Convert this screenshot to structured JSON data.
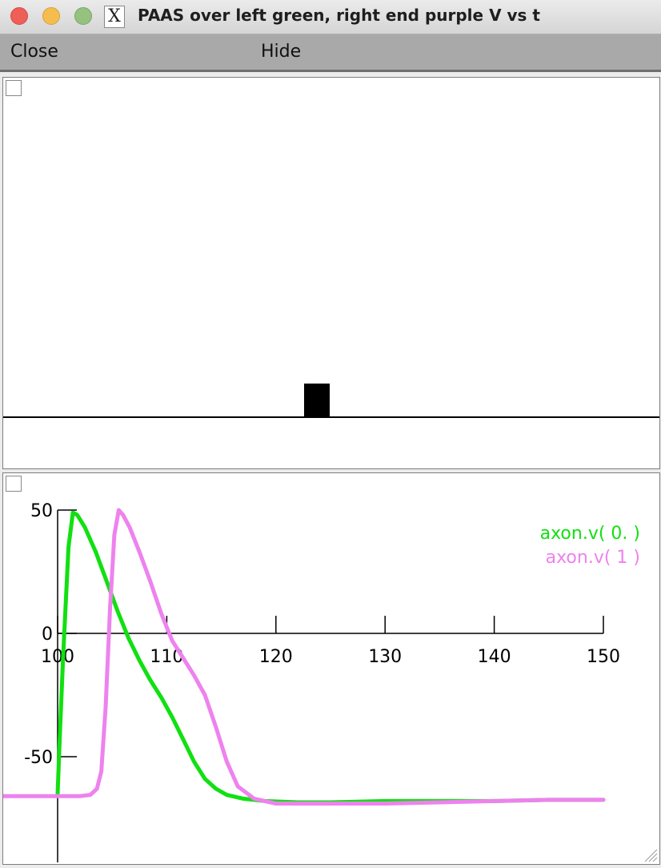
{
  "window": {
    "title": "PAAS over left green, right end purple V vs t"
  },
  "menu": {
    "close_label": "Close",
    "hide_label": "Hide"
  },
  "chart_data": {
    "type": "line",
    "xlim": [
      100,
      150
    ],
    "ylim": [
      -88,
      52
    ],
    "x_ticks": [
      100,
      110,
      120,
      130,
      140,
      150
    ],
    "x_tick_labels": [
      "100",
      "110",
      "120",
      "130",
      "140",
      "150"
    ],
    "y_ticks": [
      50,
      0,
      -50
    ],
    "y_tick_labels": [
      "50",
      "0",
      "-50"
    ],
    "legend_position": "top-right",
    "series": [
      {
        "name": "axon.v( 0. )",
        "color": "#11e011",
        "x": [
          100,
          100.2,
          100.5,
          101,
          101.4,
          101.8,
          102.5,
          103.5,
          104.5,
          105.5,
          106.5,
          107.5,
          108.5,
          109.5,
          110.5,
          111.5,
          112.5,
          113.5,
          114.5,
          115.5,
          117,
          119,
          122,
          125,
          130,
          135,
          140,
          145,
          150
        ],
        "y": [
          -65,
          -42,
          -10,
          35,
          49,
          48,
          43,
          33,
          21,
          9,
          -2,
          -11,
          -19,
          -26,
          -34,
          -43,
          -52,
          -59,
          -63,
          -65.5,
          -67,
          -68,
          -68.5,
          -68.5,
          -68,
          -68,
          -68,
          -67.5,
          -67.5
        ]
      },
      {
        "name": "axon.v( 1 )",
        "color": "#ee82ee",
        "x": [
          100,
          102,
          103,
          103.6,
          104,
          104.4,
          104.8,
          105.2,
          105.6,
          106,
          106.6,
          107.5,
          108.5,
          109.5,
          110.5,
          111.5,
          112.5,
          113.5,
          114.5,
          115.5,
          116.5,
          118,
          120,
          125,
          130,
          135,
          140,
          145,
          150
        ],
        "y": [
          -66,
          -66,
          -65.5,
          -63,
          -56,
          -30,
          10,
          40,
          50,
          48,
          43,
          33,
          21,
          8,
          -3,
          -10,
          -17,
          -25,
          -38,
          -52,
          -62,
          -67,
          -69,
          -69,
          -69,
          -68.5,
          -68,
          -67.5,
          -67.5
        ]
      }
    ]
  }
}
